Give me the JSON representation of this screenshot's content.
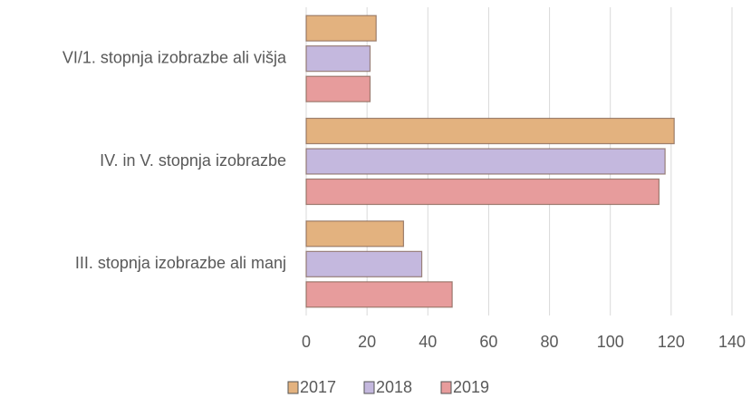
{
  "chart_data": {
    "type": "hbar",
    "categories": [
      "VI/1. stopnja izobrazbe ali višja",
      "IV. in V. stopnja izobrazbe",
      "III. stopnja izobrazbe ali manj"
    ],
    "series": [
      {
        "name": "2017",
        "color": "#e3b27f",
        "values": [
          23,
          121,
          32
        ]
      },
      {
        "name": "2018",
        "color": "#c4b8de",
        "values": [
          21,
          118,
          38
        ]
      },
      {
        "name": "2019",
        "color": "#e79c9c",
        "values": [
          21,
          116,
          48
        ]
      }
    ],
    "xlim": [
      0,
      140
    ],
    "xticks": [
      0,
      20,
      40,
      60,
      80,
      100,
      120,
      140
    ],
    "grid": true,
    "legend": "bottom"
  }
}
